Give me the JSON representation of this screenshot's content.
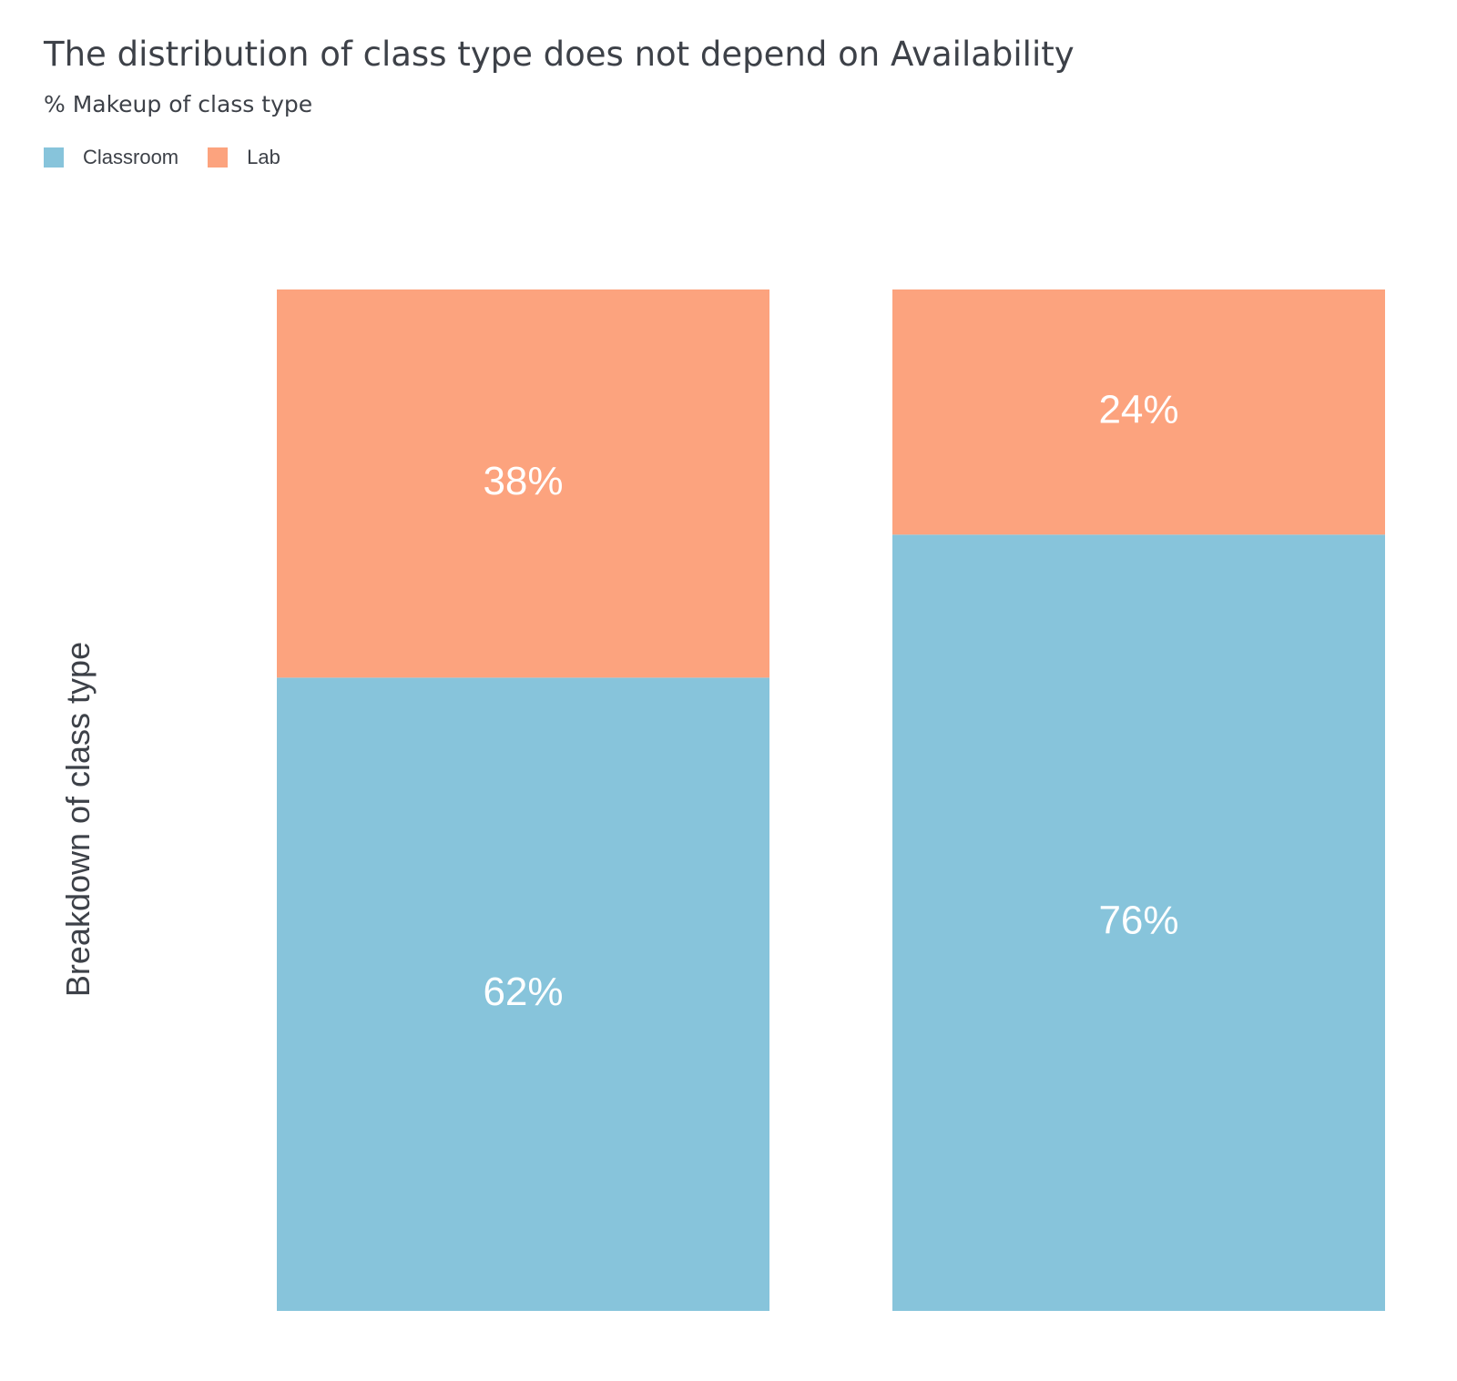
{
  "chart_data": {
    "type": "bar",
    "stacked": true,
    "title": "The distribution of class type does not depend on Availability",
    "subtitle": "% Makeup of class type",
    "ylabel": "Breakdown of class type",
    "xlabel": "",
    "ylim": [
      0,
      100
    ],
    "grid": false,
    "legend_placement": "top-left",
    "categories": [
      "",
      ""
    ],
    "series": [
      {
        "name": "Classroom",
        "color": "#87c4db",
        "values": [
          62,
          76
        ],
        "labels": [
          "62%",
          "76%"
        ]
      },
      {
        "name": "Lab",
        "color": "#fca37e",
        "values": [
          38,
          24
        ],
        "labels": [
          "38%",
          "24%"
        ]
      }
    ]
  }
}
